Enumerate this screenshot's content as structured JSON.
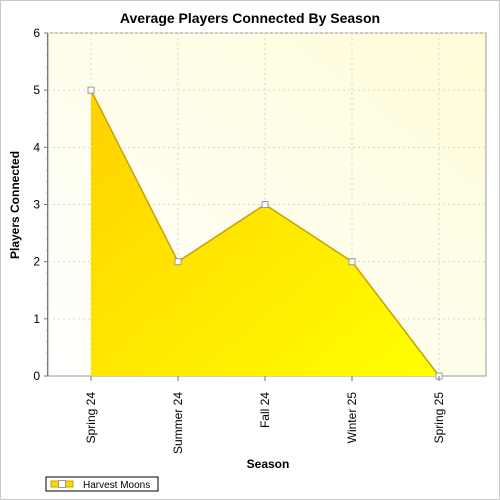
{
  "chart_data": {
    "type": "area",
    "title": "Average Players Connected By Season",
    "xlabel": "Season",
    "ylabel": "Players Connected",
    "categories": [
      "Spring 24",
      "Summer 24",
      "Fall 24",
      "Winter 25",
      "Spring 25"
    ],
    "series": [
      {
        "name": "Harvest Moons",
        "values": [
          5,
          2,
          3,
          2,
          0
        ]
      }
    ],
    "ylim": [
      0,
      6
    ],
    "yticks": [
      "0",
      "1",
      "2",
      "3",
      "4",
      "5",
      "6"
    ],
    "grid": true,
    "legend_position": "bottom-left",
    "colors": {
      "fill_light": "#ffff00",
      "fill_dark": "#ffd000",
      "line": "#c9a000",
      "plot_bg": "#fffde8",
      "grid": "#d8d8c8"
    }
  }
}
